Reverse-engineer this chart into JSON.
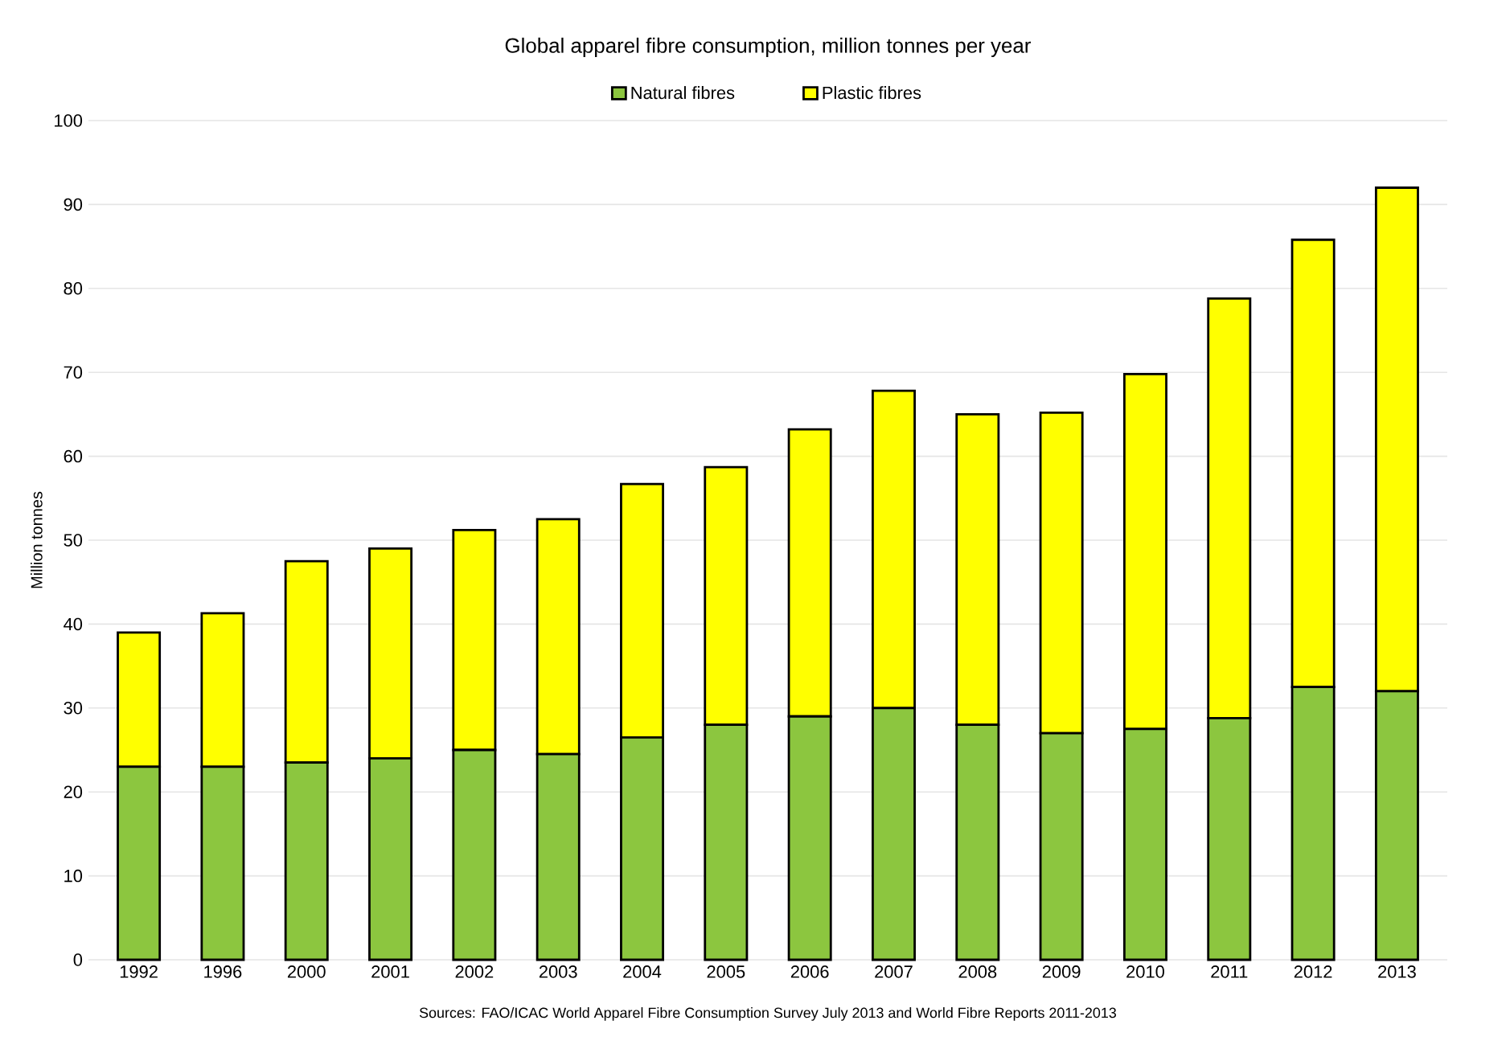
{
  "chart_data": {
    "type": "bar",
    "stacked": true,
    "title": "Global apparel fibre consumption, million tonnes per year",
    "ylabel": "Million tonnes",
    "categories": [
      "1992",
      "1996",
      "2000",
      "2001",
      "2002",
      "2003",
      "2004",
      "2005",
      "2006",
      "2007",
      "2008",
      "2009",
      "2010",
      "2011",
      "2012",
      "2013"
    ],
    "series": [
      {
        "name": "Natural fibres",
        "color": "#8cc63f",
        "values": [
          23,
          23,
          23.5,
          24,
          25,
          24.5,
          26.5,
          28,
          29,
          30,
          28,
          27,
          27.5,
          28.8,
          32.5,
          32
        ]
      },
      {
        "name": "Plastic fibres",
        "color": "#ffff00",
        "values": [
          16,
          18.3,
          24,
          25,
          26.2,
          28,
          30.2,
          30.7,
          34.2,
          37.8,
          37,
          38.2,
          42.3,
          50,
          53.3,
          60
        ]
      }
    ],
    "ylim": [
      0,
      100
    ],
    "yticks": [
      0,
      10,
      20,
      30,
      40,
      50,
      60,
      70,
      80,
      90,
      100
    ],
    "grid": "y",
    "legend": "top",
    "annotations": [
      "Sources: FAO/ICAC World Apparel Fibre Consumption Survey July 2013 and World Fibre Reports 2011-2013"
    ]
  }
}
